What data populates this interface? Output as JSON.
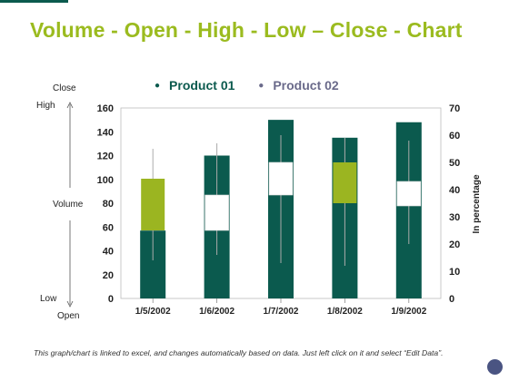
{
  "title": "Volume - Open - High - Low – Close - Chart",
  "legend": [
    {
      "label": "Product 01",
      "color": "#0b5a4e"
    },
    {
      "label": "Product 02",
      "color": "#6a6a8a"
    }
  ],
  "side_labels": {
    "close": "Close",
    "high": "High",
    "volume": "Volume",
    "low": "Low",
    "open": "Open"
  },
  "footer": "This graph/chart is linked to excel, and changes automatically based on data. Just left click on it and select “Edit Data”.",
  "colors": {
    "volume_bar": "#0b5a4e",
    "up_box": "#9bb521",
    "down_box": "#ffffff",
    "accent": "#9bbb1f"
  },
  "chart_data": {
    "type": "bar",
    "categories": [
      "1/5/2002",
      "1/6/2002",
      "1/7/2002",
      "1/8/2002",
      "1/9/2002"
    ],
    "series": [
      {
        "name": "Product 01",
        "values": [
          57,
          120,
          150,
          135,
          148
        ]
      }
    ],
    "stock": [
      {
        "open": 25,
        "close": 44,
        "high": 55,
        "low": 14
      },
      {
        "open": 38,
        "close": 25,
        "high": 57,
        "low": 16
      },
      {
        "open": 50,
        "close": 38,
        "high": 60,
        "low": 13
      },
      {
        "open": 35,
        "close": 50,
        "high": 59,
        "low": 12
      },
      {
        "open": 43,
        "close": 34,
        "high": 58,
        "low": 20
      }
    ],
    "ylim": [
      0,
      160
    ],
    "yticks": [
      0,
      20,
      40,
      60,
      80,
      100,
      120,
      140,
      160
    ],
    "y2lim": [
      0,
      70
    ],
    "y2ticks": [
      0,
      10,
      20,
      30,
      40,
      50,
      60,
      70
    ],
    "y2label": "In percentage",
    "grid": false,
    "legend_position": "top"
  }
}
